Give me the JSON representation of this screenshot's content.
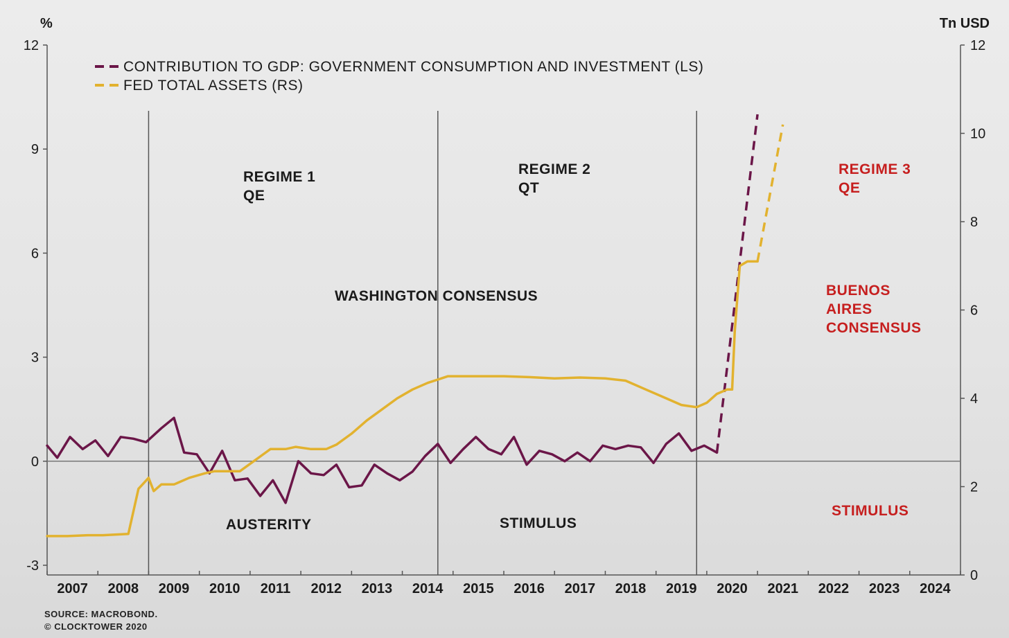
{
  "chart_data": {
    "type": "line",
    "left_axis_unit": "%",
    "right_axis_unit": "Tn USD",
    "left_ylim": [
      -3,
      12
    ],
    "left_yticks": [
      -3,
      0,
      3,
      6,
      9,
      12
    ],
    "right_ylim": [
      0,
      12
    ],
    "right_yticks": [
      0,
      2,
      4,
      6,
      8,
      10,
      12
    ],
    "x_categories": [
      "2007",
      "2008",
      "2009",
      "2010",
      "2011",
      "2012",
      "2013",
      "2014",
      "2015",
      "2016",
      "2017",
      "2018",
      "2019",
      "2020",
      "2021",
      "2022",
      "2023",
      "2024"
    ],
    "legend": [
      {
        "label": "CONTRIBUTION TO GDP: GOVERNMENT CONSUMPTION AND INVESTMENT (LS)",
        "color": "#6b1648"
      },
      {
        "label": "FED TOTAL ASSETS (RS)",
        "color": "#e2b22f"
      }
    ],
    "series": [
      {
        "name": "CONTRIBUTION TO GDP: GOVERNMENT CONSUMPTION AND INVESTMENT (LS)",
        "axis": "left",
        "color": "#6b1648",
        "points": [
          [
            2006.5,
            0.45
          ],
          [
            2006.7,
            0.1
          ],
          [
            2006.95,
            0.7
          ],
          [
            2007.2,
            0.35
          ],
          [
            2007.45,
            0.6
          ],
          [
            2007.7,
            0.15
          ],
          [
            2007.95,
            0.7
          ],
          [
            2008.2,
            0.65
          ],
          [
            2008.45,
            0.55
          ],
          [
            2008.75,
            0.95
          ],
          [
            2009.0,
            1.25
          ],
          [
            2009.2,
            0.25
          ],
          [
            2009.45,
            0.2
          ],
          [
            2009.7,
            -0.35
          ],
          [
            2009.95,
            0.3
          ],
          [
            2010.2,
            -0.55
          ],
          [
            2010.45,
            -0.5
          ],
          [
            2010.7,
            -1.0
          ],
          [
            2010.95,
            -0.55
          ],
          [
            2011.2,
            -1.2
          ],
          [
            2011.45,
            0.0
          ],
          [
            2011.7,
            -0.35
          ],
          [
            2011.95,
            -0.4
          ],
          [
            2012.2,
            -0.1
          ],
          [
            2012.45,
            -0.75
          ],
          [
            2012.7,
            -0.7
          ],
          [
            2012.95,
            -0.1
          ],
          [
            2013.2,
            -0.35
          ],
          [
            2013.45,
            -0.55
          ],
          [
            2013.7,
            -0.3
          ],
          [
            2013.95,
            0.15
          ],
          [
            2014.2,
            0.5
          ],
          [
            2014.45,
            -0.05
          ],
          [
            2014.7,
            0.35
          ],
          [
            2014.95,
            0.7
          ],
          [
            2015.2,
            0.35
          ],
          [
            2015.45,
            0.2
          ],
          [
            2015.7,
            0.7
          ],
          [
            2015.95,
            -0.1
          ],
          [
            2016.2,
            0.3
          ],
          [
            2016.45,
            0.2
          ],
          [
            2016.7,
            0.0
          ],
          [
            2016.95,
            0.25
          ],
          [
            2017.2,
            0.0
          ],
          [
            2017.45,
            0.45
          ],
          [
            2017.7,
            0.35
          ],
          [
            2017.95,
            0.45
          ],
          [
            2018.2,
            0.4
          ],
          [
            2018.45,
            -0.05
          ],
          [
            2018.7,
            0.5
          ],
          [
            2018.95,
            0.8
          ],
          [
            2019.2,
            0.3
          ],
          [
            2019.45,
            0.45
          ],
          [
            2019.7,
            0.25
          ]
        ],
        "projection": [
          [
            2019.7,
            0.25
          ],
          [
            2020.5,
            10.0
          ]
        ]
      },
      {
        "name": "FED TOTAL ASSETS (RS)",
        "axis": "right",
        "color": "#e2b22f",
        "points": [
          [
            2006.5,
            0.88
          ],
          [
            2006.9,
            0.88
          ],
          [
            2007.3,
            0.9
          ],
          [
            2007.6,
            0.9
          ],
          [
            2008.1,
            0.93
          ],
          [
            2008.3,
            1.95
          ],
          [
            2008.5,
            2.2
          ],
          [
            2008.6,
            1.9
          ],
          [
            2008.75,
            2.05
          ],
          [
            2009.0,
            2.05
          ],
          [
            2009.3,
            2.2
          ],
          [
            2009.6,
            2.3
          ],
          [
            2009.8,
            2.35
          ],
          [
            2010.0,
            2.35
          ],
          [
            2010.3,
            2.35
          ],
          [
            2010.6,
            2.6
          ],
          [
            2010.9,
            2.85
          ],
          [
            2011.2,
            2.85
          ],
          [
            2011.4,
            2.9
          ],
          [
            2011.7,
            2.85
          ],
          [
            2012.0,
            2.85
          ],
          [
            2012.2,
            2.95
          ],
          [
            2012.5,
            3.2
          ],
          [
            2012.8,
            3.5
          ],
          [
            2013.1,
            3.75
          ],
          [
            2013.4,
            4.0
          ],
          [
            2013.7,
            4.2
          ],
          [
            2014.0,
            4.35
          ],
          [
            2014.4,
            4.5
          ],
          [
            2014.8,
            4.5
          ],
          [
            2015.5,
            4.5
          ],
          [
            2016.0,
            4.48
          ],
          [
            2016.5,
            4.45
          ],
          [
            2017.0,
            4.47
          ],
          [
            2017.5,
            4.45
          ],
          [
            2017.9,
            4.4
          ],
          [
            2018.3,
            4.2
          ],
          [
            2018.7,
            4.0
          ],
          [
            2019.0,
            3.85
          ],
          [
            2019.3,
            3.8
          ],
          [
            2019.5,
            3.9
          ],
          [
            2019.7,
            4.1
          ],
          [
            2019.9,
            4.2
          ],
          [
            2020.0,
            4.2
          ],
          [
            2020.05,
            5.5
          ],
          [
            2020.15,
            7.0
          ],
          [
            2020.3,
            7.1
          ],
          [
            2020.5,
            7.1
          ]
        ],
        "projection": [
          [
            2020.5,
            7.1
          ],
          [
            2021.0,
            10.2
          ]
        ]
      }
    ],
    "regime_dividers": [
      2008.5,
      2014.2,
      2019.3
    ],
    "annotations": {
      "regime1": [
        "REGIME 1",
        "QE"
      ],
      "regime2": [
        "REGIME 2",
        "QT"
      ],
      "regime3": [
        "REGIME 3",
        "QE"
      ],
      "washington": "WASHINGTON CONSENSUS",
      "buenos": [
        "BUENOS",
        "AIRES",
        "CONSENSUS"
      ],
      "austerity": "AUSTERITY",
      "stimulus": "STIMULUS",
      "stimulus3": "STIMULUS"
    },
    "colors": {
      "annotation": "#1a1a1a",
      "annotation_highlight": "#c61f1f",
      "axis": "#555555"
    }
  },
  "source": [
    "SOURCE: MACROBOND.",
    "© CLOCKTOWER 2020"
  ]
}
